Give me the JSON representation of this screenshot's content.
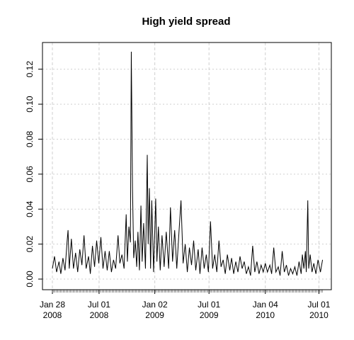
{
  "chart_data": {
    "type": "line",
    "title": "High yield spread",
    "xlabel": "",
    "ylabel": "",
    "x_range": [
      "2008-01-28",
      "2010-07-14"
    ],
    "ylim": [
      -0.005,
      0.13
    ],
    "y_ticks": [
      {
        "value": 0.0,
        "label": "0.00"
      },
      {
        "value": 0.02,
        "label": "0.02"
      },
      {
        "value": 0.04,
        "label": "0.04"
      },
      {
        "value": 0.06,
        "label": "0.06"
      },
      {
        "value": 0.08,
        "label": "0.08"
      },
      {
        "value": 0.1,
        "label": "0.10"
      },
      {
        "value": 0.12,
        "label": "0.12"
      }
    ],
    "x_ticks": [
      {
        "date": "2008-01-28",
        "line1": "Jan 28",
        "line2": "2008"
      },
      {
        "date": "2008-07-01",
        "line1": "Jul 01",
        "line2": "2008"
      },
      {
        "date": "2009-01-02",
        "line1": "Jan 02",
        "line2": "2009"
      },
      {
        "date": "2009-07-01",
        "line1": "Jul 01",
        "line2": "2009"
      },
      {
        "date": "2010-01-04",
        "line1": "Jan 04",
        "line2": "2010"
      },
      {
        "date": "2010-07-01",
        "line1": "Jul 01",
        "line2": "2010"
      }
    ],
    "grid": true,
    "series": [
      {
        "color": "#000000",
        "points": [
          [
            "2008-01-28",
            0.006
          ],
          [
            "2008-02-04",
            0.013
          ],
          [
            "2008-02-11",
            0.004
          ],
          [
            "2008-02-19",
            0.01
          ],
          [
            "2008-02-25",
            0.003
          ],
          [
            "2008-03-03",
            0.012
          ],
          [
            "2008-03-10",
            0.005
          ],
          [
            "2008-03-17",
            0.022
          ],
          [
            "2008-03-20",
            0.028
          ],
          [
            "2008-03-24",
            0.006
          ],
          [
            "2008-03-31",
            0.023
          ],
          [
            "2008-04-07",
            0.006
          ],
          [
            "2008-04-14",
            0.015
          ],
          [
            "2008-04-21",
            0.004
          ],
          [
            "2008-04-28",
            0.017
          ],
          [
            "2008-05-05",
            0.008
          ],
          [
            "2008-05-12",
            0.025
          ],
          [
            "2008-05-19",
            0.006
          ],
          [
            "2008-05-27",
            0.013
          ],
          [
            "2008-06-02",
            0.003
          ],
          [
            "2008-06-09",
            0.019
          ],
          [
            "2008-06-16",
            0.007
          ],
          [
            "2008-06-23",
            0.022
          ],
          [
            "2008-06-30",
            0.009
          ],
          [
            "2008-07-07",
            0.024
          ],
          [
            "2008-07-14",
            0.006
          ],
          [
            "2008-07-21",
            0.016
          ],
          [
            "2008-07-28",
            0.005
          ],
          [
            "2008-08-04",
            0.016
          ],
          [
            "2008-08-11",
            0.004
          ],
          [
            "2008-08-18",
            0.011
          ],
          [
            "2008-08-25",
            0.006
          ],
          [
            "2008-09-02",
            0.025
          ],
          [
            "2008-09-08",
            0.009
          ],
          [
            "2008-09-15",
            0.014
          ],
          [
            "2008-09-22",
            0.006
          ],
          [
            "2008-09-29",
            0.037
          ],
          [
            "2008-10-03",
            0.01
          ],
          [
            "2008-10-08",
            0.03
          ],
          [
            "2008-10-13",
            0.021
          ],
          [
            "2008-10-16",
            0.13
          ],
          [
            "2008-10-20",
            0.052
          ],
          [
            "2008-10-24",
            0.012
          ],
          [
            "2008-10-29",
            0.022
          ],
          [
            "2008-11-03",
            0.007
          ],
          [
            "2008-11-07",
            0.027
          ],
          [
            "2008-11-12",
            0.005
          ],
          [
            "2008-11-17",
            0.042
          ],
          [
            "2008-11-21",
            0.01
          ],
          [
            "2008-11-26",
            0.032
          ],
          [
            "2008-12-02",
            0.006
          ],
          [
            "2008-12-08",
            0.071
          ],
          [
            "2008-12-11",
            0.02
          ],
          [
            "2008-12-15",
            0.052
          ],
          [
            "2008-12-19",
            0.006
          ],
          [
            "2008-12-23",
            0.045
          ],
          [
            "2008-12-29",
            0.004
          ],
          [
            "2009-01-05",
            0.046
          ],
          [
            "2009-01-09",
            0.01
          ],
          [
            "2009-01-14",
            0.03
          ],
          [
            "2009-01-20",
            0.005
          ],
          [
            "2009-01-26",
            0.025
          ],
          [
            "2009-02-02",
            0.007
          ],
          [
            "2009-02-09",
            0.027
          ],
          [
            "2009-02-17",
            0.006
          ],
          [
            "2009-02-23",
            0.041
          ],
          [
            "2009-03-02",
            0.01
          ],
          [
            "2009-03-09",
            0.028
          ],
          [
            "2009-03-16",
            0.006
          ],
          [
            "2009-03-23",
            0.026
          ],
          [
            "2009-03-30",
            0.045
          ],
          [
            "2009-04-06",
            0.009
          ],
          [
            "2009-04-13",
            0.02
          ],
          [
            "2009-04-20",
            0.004
          ],
          [
            "2009-04-27",
            0.018
          ],
          [
            "2009-05-04",
            0.008
          ],
          [
            "2009-05-11",
            0.022
          ],
          [
            "2009-05-18",
            0.005
          ],
          [
            "2009-05-26",
            0.017
          ],
          [
            "2009-06-01",
            0.003
          ],
          [
            "2009-06-08",
            0.018
          ],
          [
            "2009-06-15",
            0.006
          ],
          [
            "2009-06-22",
            0.014
          ],
          [
            "2009-06-29",
            0.004
          ],
          [
            "2009-07-06",
            0.033
          ],
          [
            "2009-07-13",
            0.006
          ],
          [
            "2009-07-20",
            0.014
          ],
          [
            "2009-07-27",
            0.004
          ],
          [
            "2009-08-03",
            0.022
          ],
          [
            "2009-08-10",
            0.007
          ],
          [
            "2009-08-17",
            0.011
          ],
          [
            "2009-08-24",
            0.003
          ],
          [
            "2009-08-31",
            0.014
          ],
          [
            "2009-09-08",
            0.005
          ],
          [
            "2009-09-14",
            0.012
          ],
          [
            "2009-09-21",
            0.003
          ],
          [
            "2009-09-28",
            0.01
          ],
          [
            "2009-10-05",
            0.004
          ],
          [
            "2009-10-12",
            0.013
          ],
          [
            "2009-10-19",
            0.006
          ],
          [
            "2009-10-26",
            0.01
          ],
          [
            "2009-11-02",
            0.003
          ],
          [
            "2009-11-09",
            0.007
          ],
          [
            "2009-11-16",
            0.002
          ],
          [
            "2009-11-23",
            0.019
          ],
          [
            "2009-11-30",
            0.004
          ],
          [
            "2009-12-07",
            0.01
          ],
          [
            "2009-12-14",
            0.003
          ],
          [
            "2009-12-21",
            0.008
          ],
          [
            "2009-12-28",
            0.004
          ],
          [
            "2010-01-04",
            0.009
          ],
          [
            "2010-01-11",
            0.004
          ],
          [
            "2010-01-19",
            0.008
          ],
          [
            "2010-01-25",
            0.003
          ],
          [
            "2010-02-01",
            0.018
          ],
          [
            "2010-02-08",
            0.004
          ],
          [
            "2010-02-16",
            0.007
          ],
          [
            "2010-02-22",
            0.002
          ],
          [
            "2010-03-01",
            0.016
          ],
          [
            "2010-03-08",
            0.004
          ],
          [
            "2010-03-15",
            0.008
          ],
          [
            "2010-03-22",
            0.002
          ],
          [
            "2010-03-29",
            0.006
          ],
          [
            "2010-04-05",
            0.003
          ],
          [
            "2010-04-12",
            0.007
          ],
          [
            "2010-04-19",
            0.002
          ],
          [
            "2010-04-26",
            0.01
          ],
          [
            "2010-05-03",
            0.003
          ],
          [
            "2010-05-07",
            0.014
          ],
          [
            "2010-05-12",
            0.006
          ],
          [
            "2010-05-17",
            0.016
          ],
          [
            "2010-05-20",
            0.004
          ],
          [
            "2010-05-25",
            0.045
          ],
          [
            "2010-05-28",
            0.006
          ],
          [
            "2010-06-02",
            0.014
          ],
          [
            "2010-06-08",
            0.004
          ],
          [
            "2010-06-14",
            0.009
          ],
          [
            "2010-06-21",
            0.003
          ],
          [
            "2010-06-28",
            0.011
          ],
          [
            "2010-07-06",
            0.004
          ],
          [
            "2010-07-13",
            0.011
          ]
        ]
      }
    ]
  }
}
